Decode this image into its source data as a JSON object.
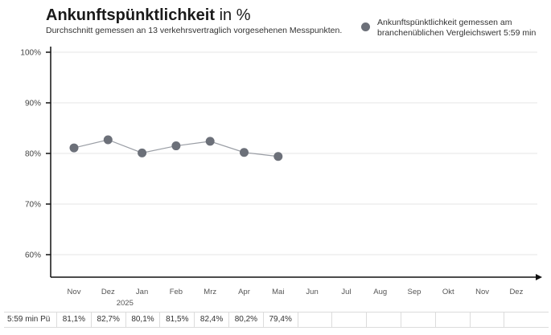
{
  "header": {
    "title_bold": "Ankunftspünktlichkeit",
    "title_rest": " in %",
    "subtitle": "Durchschnitt gemessen an 13 verkehrsvertraglich vorgesehenen Messpunkten."
  },
  "legend": {
    "label_line1": "Ankunftspünktlichkeit gemessen am",
    "label_line2": "branchenüblichen Vergleichswert 5:59 min",
    "color": "#6c7079"
  },
  "chart_data": {
    "type": "line",
    "categories": [
      "Nov",
      "Dez",
      "Jan",
      "Feb",
      "Mrz",
      "Apr",
      "Mai",
      "Jun",
      "Jul",
      "Aug",
      "Sep",
      "Okt",
      "Nov",
      "Dez"
    ],
    "year_label": "2025",
    "series": [
      {
        "values": [
          81.1,
          82.7,
          80.1,
          81.5,
          82.4,
          80.2,
          79.4,
          null,
          null,
          null,
          null,
          null,
          null,
          null
        ],
        "color": "#6c7079",
        "line_color": "#9a9ea5"
      }
    ],
    "yticks": [
      "60%",
      "70%",
      "80%",
      "90%",
      "100%"
    ],
    "ylim": [
      55,
      100
    ],
    "grid": true
  },
  "table": {
    "row_label": "5:59 min Pü",
    "values": [
      "81,1%",
      "82,7%",
      "80,1%",
      "81,5%",
      "82,4%",
      "80,2%",
      "79,4%",
      "",
      "",
      "",
      "",
      "",
      "",
      ""
    ]
  }
}
